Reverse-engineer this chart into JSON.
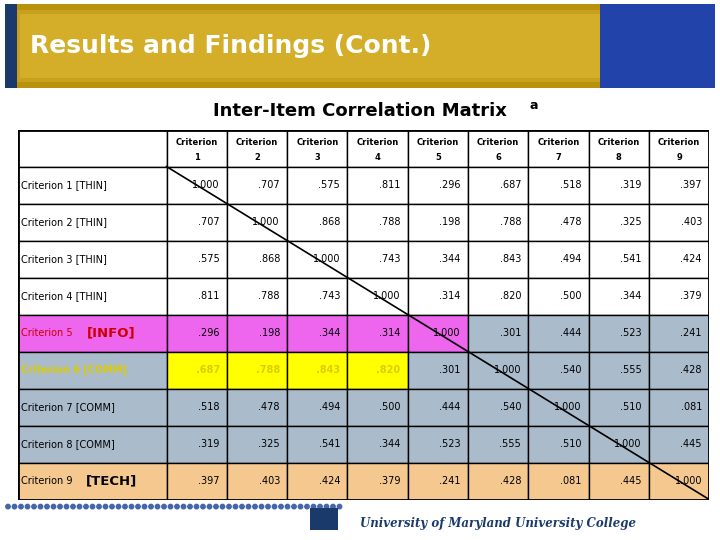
{
  "title": "Inter-Item Correlation Matrix",
  "title_superscript": "a",
  "slide_title": "Results and Findings (Cont.)",
  "col_headers": [
    "Criterion\n1",
    "Criterion\n2",
    "Criterion\n3",
    "Criterion\n4",
    "Criterion\n5",
    "Criterion\n6",
    "Criterion\n7",
    "Criterion\n8",
    "Criterion\n9"
  ],
  "row_labels": [
    "Criterion 1 [THIN]",
    "Criterion 2 [THIN]",
    "Criterion 3 [THIN]",
    "Criterion 4 [THIN]",
    "Criterion 5 [INFO]",
    "Criterion 6 [COMM]",
    "Criterion 7 [COMM]",
    "Criterion 8 [COMM]",
    "Criterion 9 [TECH]"
  ],
  "row_bgs": [
    "#ffffff",
    "#ffffff",
    "#ffffff",
    "#ffffff",
    "#ee66ee",
    "#aabbcc",
    "#aabbcc",
    "#aabbcc",
    "#f5c890"
  ],
  "label_bgs": [
    "#ffffff",
    "#ffffff",
    "#ffffff",
    "#ffffff",
    "#ee66ee",
    "#aabbcc",
    "#aabbcc",
    "#aabbcc",
    "#f5c890"
  ],
  "data": [
    [
      1.0,
      0.707,
      0.575,
      0.811,
      0.296,
      0.687,
      0.518,
      0.319,
      0.397
    ],
    [
      0.707,
      1.0,
      0.868,
      0.788,
      0.198,
      0.788,
      0.478,
      0.325,
      0.403
    ],
    [
      0.575,
      0.868,
      1.0,
      0.743,
      0.344,
      0.843,
      0.494,
      0.541,
      0.424
    ],
    [
      0.811,
      0.788,
      0.743,
      1.0,
      0.314,
      0.82,
      0.5,
      0.344,
      0.379
    ],
    [
      0.296,
      0.198,
      0.344,
      0.314,
      1.0,
      0.301,
      0.444,
      0.523,
      0.241
    ],
    [
      0.687,
      0.788,
      0.843,
      0.82,
      0.301,
      1.0,
      0.54,
      0.555,
      0.428
    ],
    [
      0.518,
      0.478,
      0.494,
      0.5,
      0.444,
      0.54,
      1.0,
      0.51,
      0.081
    ],
    [
      0.319,
      0.325,
      0.541,
      0.344,
      0.523,
      0.555,
      0.51,
      1.0,
      0.445
    ],
    [
      0.397,
      0.403,
      0.424,
      0.379,
      0.241,
      0.428,
      0.081,
      0.445,
      1.0
    ]
  ],
  "footer_text": "University of Maryland University College",
  "header_gold": "#C8A020",
  "header_gold_inner": "#D4AE28",
  "bg_white": "#ffffff",
  "text_black": "#000000",
  "text_red": "#cc0000",
  "text_yellow": "#ddcc00",
  "dot_color": "#336699",
  "cell_overrides": {
    "4_0": "#ee66ee",
    "4_1": "#ee66ee",
    "4_2": "#ee66ee",
    "4_3": "#ee66ee",
    "4_4": "#ee66ee",
    "4_5": "#aabbcc",
    "4_6": "#aabbcc",
    "4_7": "#aabbcc",
    "4_8": "#aabbcc",
    "5_0": "#ffff00",
    "5_1": "#ffff00",
    "5_2": "#ffff00",
    "5_3": "#ffff00",
    "5_4": "#aabbcc",
    "5_5": "#aabbcc",
    "5_6": "#aabbcc",
    "5_7": "#aabbcc",
    "5_8": "#aabbcc"
  }
}
